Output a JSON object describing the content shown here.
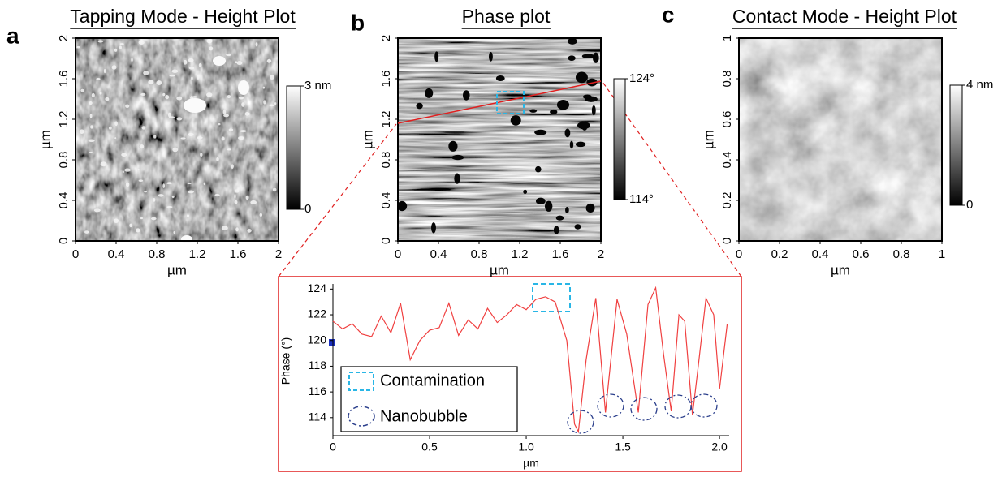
{
  "chart_data": [
    {
      "type": "image",
      "panel": "a",
      "title": "Tapping Mode - Height Plot",
      "xlabel": "µm",
      "ylabel": "µm",
      "xlim": [
        0,
        2
      ],
      "xticks": [
        0,
        0.4,
        0.8,
        1.2,
        1.6,
        2
      ],
      "ylim": [
        0,
        2
      ],
      "yticks": [
        0,
        0.4,
        0.8,
        1.2,
        1.6,
        2
      ],
      "clim": [
        0,
        3
      ],
      "cticks": [
        {
          "value": 3,
          "label": "3 nm"
        },
        0
      ]
    },
    {
      "type": "image",
      "panel": "b",
      "title": "Phase plot",
      "xlabel": "µm",
      "ylabel": "µm",
      "xlim": [
        0,
        2
      ],
      "xticks": [
        0,
        0.4,
        0.8,
        1.2,
        1.6,
        2
      ],
      "ylim": [
        0,
        2
      ],
      "yticks": [
        0,
        0.4,
        0.8,
        1.2,
        1.6,
        2
      ],
      "clim": [
        114,
        124
      ],
      "cticks": [
        {
          "value": 124,
          "label": "124°"
        },
        {
          "value": 114,
          "label": "114°"
        }
      ]
    },
    {
      "type": "image",
      "panel": "c",
      "title": "Contact Mode - Height Plot",
      "xlabel": "µm",
      "ylabel": "µm",
      "xlim": [
        0,
        1
      ],
      "xticks": [
        0,
        0.2,
        0.4,
        0.6,
        0.8,
        1
      ],
      "ylim": [
        0,
        1
      ],
      "yticks": [
        0,
        0.2,
        0.4,
        0.6,
        0.8,
        1
      ],
      "clim": [
        0,
        4
      ],
      "cticks": [
        {
          "value": 4,
          "label": "4 nm"
        },
        0
      ]
    },
    {
      "type": "line",
      "xlabel": "µm",
      "ylabel": "Phase (°)",
      "color": "#f04040",
      "x": [
        0,
        0.05,
        0.1,
        0.15,
        0.2,
        0.25,
        0.3,
        0.35,
        0.4,
        0.45,
        0.5,
        0.55,
        0.6,
        0.65,
        0.7,
        0.75,
        0.8,
        0.85,
        0.9,
        0.95,
        1.0,
        1.05,
        1.1,
        1.15,
        1.21,
        1.25,
        1.27,
        1.31,
        1.36,
        1.41,
        1.47,
        1.52,
        1.58,
        1.63,
        1.67,
        1.71,
        1.75,
        1.79,
        1.82,
        1.86,
        1.89,
        1.93,
        1.97,
        2.0,
        2.04
      ],
      "values": [
        121.5,
        120.9,
        121.3,
        120.5,
        120.3,
        121.9,
        120.6,
        122.9,
        118.5,
        120.0,
        120.8,
        121.0,
        122.9,
        120.4,
        121.6,
        120.9,
        122.5,
        121.4,
        122.0,
        122.8,
        122.4,
        123.2,
        123.4,
        123.0,
        120.0,
        113.5,
        112.9,
        118.5,
        123.3,
        114.4,
        123.2,
        120.5,
        114.4,
        122.8,
        124.1,
        119.0,
        114.5,
        122.0,
        121.5,
        114.2,
        118.0,
        123.3,
        122.0,
        116.2,
        121.3
      ],
      "xlim": [
        0,
        2.05
      ],
      "xticks": [
        0,
        0.5,
        {
          "value": 1,
          "label": "1.0"
        },
        1.5,
        {
          "value": 2,
          "label": "2.0"
        }
      ],
      "ylim": [
        112.6,
        124.4
      ],
      "yticks": [
        114,
        116,
        118,
        120,
        122,
        124
      ],
      "legend": [
        "Contamination",
        "Nanobubble"
      ]
    }
  ]
}
